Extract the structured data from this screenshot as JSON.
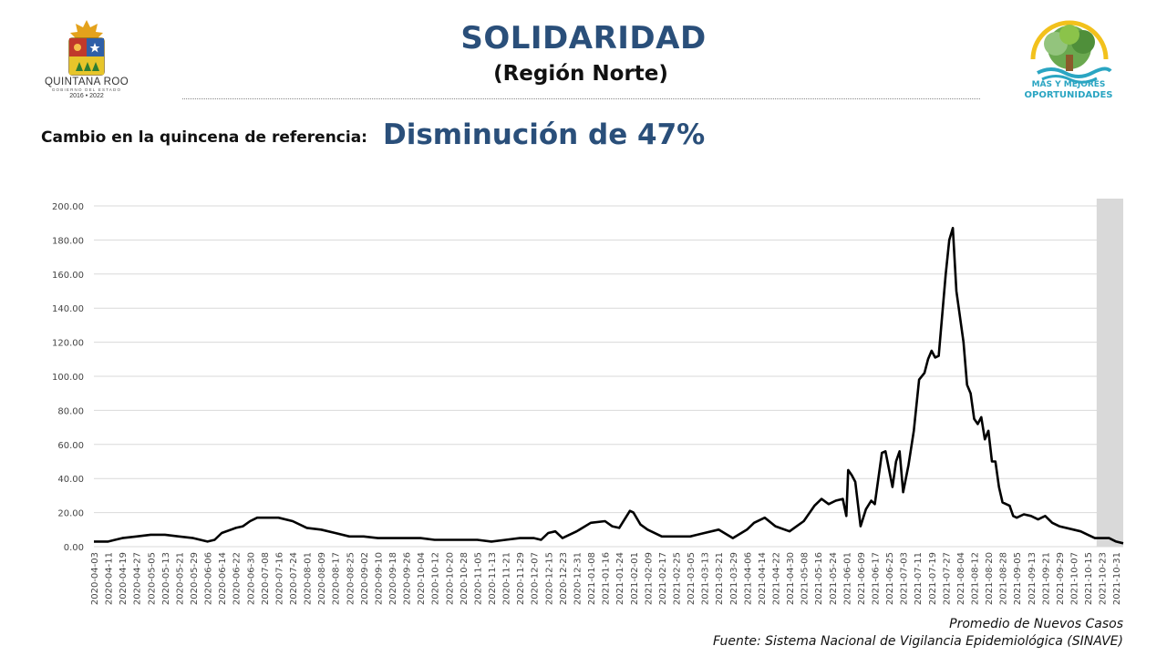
{
  "header": {
    "title": "SOLIDARIDAD",
    "subtitle": "(Región Norte)"
  },
  "logo_left": {
    "name": "QUINTANA ROO",
    "tagline": "GOBIERNO DEL ESTADO",
    "years": "2016 • 2022",
    "icon": "state-coat-of-arms-icon"
  },
  "logo_right": {
    "line1": "MÁS Y MEJORES",
    "line2": "OPORTUNIDADES",
    "icon": "tree-logo-icon"
  },
  "reference": {
    "label": "Cambio en la quincena de referencia:",
    "value": "Disminución de 47%"
  },
  "footer": {
    "series_label": "Promedio de Nuevos Casos",
    "source": "Fuente: Sistema Nacional de Vigilancia Epidemiológica (SINAVE)"
  },
  "colors": {
    "title": "#2a4f7a",
    "line": "#000000",
    "grid": "#d9d9d9",
    "shade": "#d9d9d9"
  },
  "chart_data": {
    "type": "line",
    "title": "",
    "xlabel": "",
    "ylabel": "",
    "ylim": [
      0,
      200
    ],
    "yticks": [
      "0.00",
      "20.00",
      "40.00",
      "60.00",
      "80.00",
      "100.00",
      "120.00",
      "140.00",
      "160.00",
      "180.00",
      "200.00"
    ],
    "xticks": [
      "2020-04-03",
      "2020-04-11",
      "2020-04-19",
      "2020-04-27",
      "2020-05-05",
      "2020-05-13",
      "2020-05-21",
      "2020-05-29",
      "2020-06-06",
      "2020-06-14",
      "2020-06-22",
      "2020-06-30",
      "2020-07-08",
      "2020-07-16",
      "2020-07-24",
      "2020-08-01",
      "2020-08-09",
      "2020-08-17",
      "2020-08-25",
      "2020-09-02",
      "2020-09-10",
      "2020-09-18",
      "2020-09-26",
      "2020-10-04",
      "2020-10-12",
      "2020-10-20",
      "2020-10-28",
      "2020-11-05",
      "2020-11-13",
      "2020-11-21",
      "2020-11-29",
      "2020-12-07",
      "2020-12-15",
      "2020-12-23",
      "2020-12-31",
      "2021-01-08",
      "2021-01-16",
      "2021-01-24",
      "2021-02-01",
      "2021-02-09",
      "2021-02-17",
      "2021-02-25",
      "2021-03-05",
      "2021-03-13",
      "2021-03-21",
      "2021-03-29",
      "2021-04-06",
      "2021-04-14",
      "2021-04-22",
      "2021-04-30",
      "2021-05-08",
      "2021-05-16",
      "2021-05-24",
      "2021-06-01",
      "2021-06-09",
      "2021-06-17",
      "2021-06-25",
      "2021-07-03",
      "2021-07-11",
      "2021-07-19",
      "2021-07-27",
      "2021-08-04",
      "2021-08-12",
      "2021-08-20",
      "2021-08-28",
      "2021-09-05",
      "2021-09-13",
      "2021-09-21",
      "2021-09-29",
      "2021-10-07",
      "2021-10-15",
      "2021-10-23",
      "2021-10-31"
    ],
    "shaded_range": [
      "2021-10-20",
      "2021-11-04"
    ],
    "grid": true,
    "series": [
      {
        "name": "Promedio de Nuevos Casos",
        "points": [
          [
            "2020-04-03",
            3
          ],
          [
            "2020-04-11",
            3
          ],
          [
            "2020-04-19",
            5
          ],
          [
            "2020-04-27",
            6
          ],
          [
            "2020-05-05",
            7
          ],
          [
            "2020-05-13",
            7
          ],
          [
            "2020-05-21",
            6
          ],
          [
            "2020-05-29",
            5
          ],
          [
            "2020-06-06",
            3
          ],
          [
            "2020-06-10",
            4
          ],
          [
            "2020-06-14",
            8
          ],
          [
            "2020-06-22",
            11
          ],
          [
            "2020-06-26",
            12
          ],
          [
            "2020-06-30",
            15
          ],
          [
            "2020-07-04",
            17
          ],
          [
            "2020-07-08",
            17
          ],
          [
            "2020-07-16",
            17
          ],
          [
            "2020-07-24",
            15
          ],
          [
            "2020-08-01",
            11
          ],
          [
            "2020-08-09",
            10
          ],
          [
            "2020-08-17",
            8
          ],
          [
            "2020-08-25",
            6
          ],
          [
            "2020-09-02",
            6
          ],
          [
            "2020-09-10",
            5
          ],
          [
            "2020-09-18",
            5
          ],
          [
            "2020-09-26",
            5
          ],
          [
            "2020-10-04",
            5
          ],
          [
            "2020-10-12",
            4
          ],
          [
            "2020-10-20",
            4
          ],
          [
            "2020-10-28",
            4
          ],
          [
            "2020-11-05",
            4
          ],
          [
            "2020-11-13",
            3
          ],
          [
            "2020-11-21",
            4
          ],
          [
            "2020-11-29",
            5
          ],
          [
            "2020-12-07",
            5
          ],
          [
            "2020-12-11",
            4
          ],
          [
            "2020-12-15",
            8
          ],
          [
            "2020-12-19",
            9
          ],
          [
            "2020-12-23",
            5
          ],
          [
            "2020-12-31",
            9
          ],
          [
            "2021-01-08",
            14
          ],
          [
            "2021-01-16",
            15
          ],
          [
            "2021-01-20",
            12
          ],
          [
            "2021-01-24",
            11
          ],
          [
            "2021-01-30",
            21
          ],
          [
            "2021-02-01",
            20
          ],
          [
            "2021-02-05",
            13
          ],
          [
            "2021-02-09",
            10
          ],
          [
            "2021-02-17",
            6
          ],
          [
            "2021-02-25",
            6
          ],
          [
            "2021-03-05",
            6
          ],
          [
            "2021-03-13",
            8
          ],
          [
            "2021-03-21",
            10
          ],
          [
            "2021-03-29",
            5
          ],
          [
            "2021-04-06",
            10
          ],
          [
            "2021-04-10",
            14
          ],
          [
            "2021-04-16",
            17
          ],
          [
            "2021-04-22",
            12
          ],
          [
            "2021-04-30",
            9
          ],
          [
            "2021-05-04",
            12
          ],
          [
            "2021-05-08",
            15
          ],
          [
            "2021-05-14",
            24
          ],
          [
            "2021-05-18",
            28
          ],
          [
            "2021-05-22",
            25
          ],
          [
            "2021-05-26",
            27
          ],
          [
            "2021-05-30",
            28
          ],
          [
            "2021-06-01",
            18
          ],
          [
            "2021-06-02",
            45
          ],
          [
            "2021-06-04",
            42
          ],
          [
            "2021-06-06",
            38
          ],
          [
            "2021-06-09",
            12
          ],
          [
            "2021-06-12",
            22
          ],
          [
            "2021-06-15",
            27
          ],
          [
            "2021-06-17",
            25
          ],
          [
            "2021-06-21",
            55
          ],
          [
            "2021-06-23",
            56
          ],
          [
            "2021-06-27",
            35
          ],
          [
            "2021-06-29",
            50
          ],
          [
            "2021-07-01",
            56
          ],
          [
            "2021-07-03",
            32
          ],
          [
            "2021-07-06",
            48
          ],
          [
            "2021-07-09",
            68
          ],
          [
            "2021-07-12",
            98
          ],
          [
            "2021-07-15",
            102
          ],
          [
            "2021-07-17",
            110
          ],
          [
            "2021-07-19",
            115
          ],
          [
            "2021-07-21",
            111
          ],
          [
            "2021-07-23",
            112
          ],
          [
            "2021-07-27",
            160
          ],
          [
            "2021-07-29",
            180
          ],
          [
            "2021-07-31",
            187
          ],
          [
            "2021-08-02",
            150
          ],
          [
            "2021-08-04",
            135
          ],
          [
            "2021-08-06",
            120
          ],
          [
            "2021-08-08",
            95
          ],
          [
            "2021-08-10",
            90
          ],
          [
            "2021-08-12",
            75
          ],
          [
            "2021-08-14",
            72
          ],
          [
            "2021-08-16",
            76
          ],
          [
            "2021-08-18",
            63
          ],
          [
            "2021-08-20",
            68
          ],
          [
            "2021-08-22",
            50
          ],
          [
            "2021-08-24",
            50
          ],
          [
            "2021-08-26",
            35
          ],
          [
            "2021-08-28",
            26
          ],
          [
            "2021-09-01",
            24
          ],
          [
            "2021-09-03",
            18
          ],
          [
            "2021-09-05",
            17
          ],
          [
            "2021-09-09",
            19
          ],
          [
            "2021-09-13",
            18
          ],
          [
            "2021-09-17",
            16
          ],
          [
            "2021-09-21",
            18
          ],
          [
            "2021-09-25",
            14
          ],
          [
            "2021-09-29",
            12
          ],
          [
            "2021-10-07",
            10
          ],
          [
            "2021-10-11",
            9
          ],
          [
            "2021-10-15",
            7
          ],
          [
            "2021-10-19",
            5
          ],
          [
            "2021-10-23",
            5
          ],
          [
            "2021-10-27",
            5
          ],
          [
            "2021-10-31",
            3
          ],
          [
            "2021-11-04",
            2
          ]
        ]
      }
    ]
  }
}
